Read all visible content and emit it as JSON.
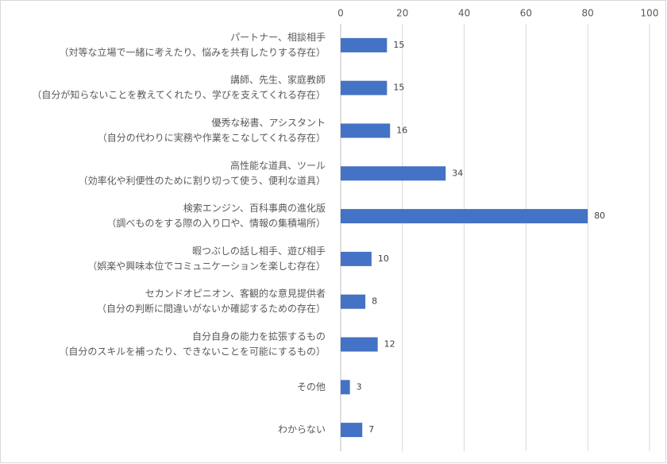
{
  "chart_data": {
    "type": "barh",
    "categories": [
      [
        "パートナー、相談相手",
        "（対等な立場で一緒に考えたり、悩みを共有したりする存在）"
      ],
      [
        "講師、先生、家庭教師",
        "（自分が知らないことを教えてくれたり、学びを支えてくれる存在）"
      ],
      [
        "優秀な秘書、アシスタント",
        "（自分の代わりに実務や作業をこなしてくれる存在）"
      ],
      [
        "高性能な道具、ツール",
        "（効率化や利便性のために割り切って使う、便利な道具）"
      ],
      [
        "検索エンジン、百科事典の進化版",
        "（調べものをする際の入り口や、情報の集積場所）"
      ],
      [
        "暇つぶしの話し相手、遊び相手",
        "（娯楽や興味本位でコミュニケーションを楽しむ存在）"
      ],
      [
        "セカンドオピニオン、客観的な意見提供者",
        "（自分の判断に間違いがないか確認するための存在）"
      ],
      [
        "自分自身の能力を拡張するもの",
        "（自分のスキルを補ったり、できないことを可能にするもの）"
      ],
      [
        "その他"
      ],
      [
        "わからない"
      ]
    ],
    "values": [
      15,
      15,
      16,
      34,
      80,
      10,
      8,
      12,
      3,
      7
    ],
    "color": "#4472c4",
    "xlim": [
      0,
      100
    ],
    "xticks": [
      0,
      20,
      40,
      60,
      80,
      100
    ],
    "grid": true,
    "data_labels": true
  }
}
